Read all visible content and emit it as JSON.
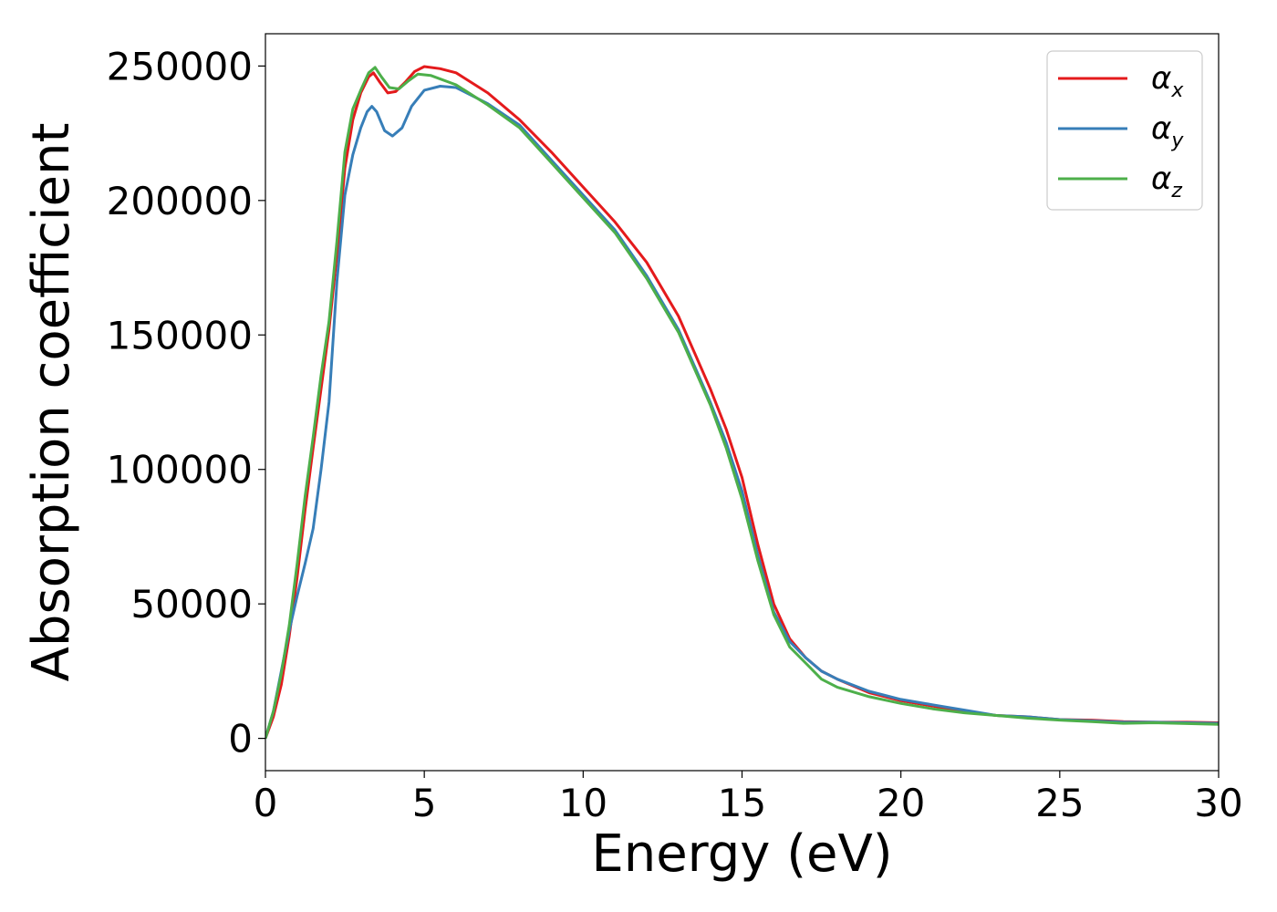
{
  "chart_data": {
    "type": "line",
    "title": "",
    "xlabel": "Energy (eV)",
    "ylabel": "Absorption coefficient",
    "xlim": [
      0,
      30
    ],
    "ylim": [
      -12000,
      262000
    ],
    "x_ticks": [
      0,
      5,
      10,
      15,
      20,
      25,
      30
    ],
    "x_tick_labels": [
      "0",
      "5",
      "10",
      "15",
      "20",
      "25",
      "30"
    ],
    "y_ticks": [
      0,
      50000,
      100000,
      150000,
      200000,
      250000
    ],
    "y_tick_labels": [
      "0",
      "50000",
      "100000",
      "150000",
      "200000",
      "250000"
    ],
    "grid": false,
    "legend_position": "top-right",
    "series": [
      {
        "name": "α_x",
        "legend_main": "α",
        "legend_sub": "x",
        "color": "#e41a1c",
        "points": [
          [
            0,
            0
          ],
          [
            0.25,
            8000
          ],
          [
            0.5,
            20000
          ],
          [
            0.75,
            38000
          ],
          [
            1,
            60000
          ],
          [
            1.25,
            85000
          ],
          [
            1.5,
            108000
          ],
          [
            1.75,
            130000
          ],
          [
            2,
            152000
          ],
          [
            2.25,
            180000
          ],
          [
            2.5,
            212000
          ],
          [
            2.75,
            230000
          ],
          [
            3,
            240000
          ],
          [
            3.25,
            246000
          ],
          [
            3.4,
            247500
          ],
          [
            3.6,
            244000
          ],
          [
            3.85,
            240000
          ],
          [
            4.1,
            240500
          ],
          [
            4.4,
            244000
          ],
          [
            4.7,
            248000
          ],
          [
            5,
            249800
          ],
          [
            5.5,
            249000
          ],
          [
            6,
            247500
          ],
          [
            7,
            240000
          ],
          [
            8,
            230000
          ],
          [
            9,
            218000
          ],
          [
            10,
            205000
          ],
          [
            11,
            192000
          ],
          [
            12,
            177000
          ],
          [
            13,
            157000
          ],
          [
            14,
            130000
          ],
          [
            14.5,
            115000
          ],
          [
            15,
            97000
          ],
          [
            15.5,
            72000
          ],
          [
            16,
            50000
          ],
          [
            16.5,
            37000
          ],
          [
            17,
            30000
          ],
          [
            17.5,
            25000
          ],
          [
            18,
            22000
          ],
          [
            19,
            17000
          ],
          [
            20,
            14000
          ],
          [
            21,
            12000
          ],
          [
            22,
            10000
          ],
          [
            23,
            8500
          ],
          [
            24,
            8000
          ],
          [
            25,
            7000
          ],
          [
            26,
            6800
          ],
          [
            27,
            6200
          ],
          [
            28,
            6000
          ],
          [
            29,
            6000
          ],
          [
            30,
            5800
          ]
        ]
      },
      {
        "name": "α_y",
        "legend_main": "α",
        "legend_sub": "y",
        "color": "#377eb8",
        "points": [
          [
            0,
            0
          ],
          [
            0.25,
            10000
          ],
          [
            0.5,
            25000
          ],
          [
            0.75,
            40000
          ],
          [
            1,
            53000
          ],
          [
            1.25,
            65000
          ],
          [
            1.5,
            78000
          ],
          [
            1.75,
            100000
          ],
          [
            2,
            125000
          ],
          [
            2.25,
            170000
          ],
          [
            2.5,
            202000
          ],
          [
            2.75,
            217000
          ],
          [
            3,
            227000
          ],
          [
            3.2,
            233000
          ],
          [
            3.35,
            235000
          ],
          [
            3.5,
            233000
          ],
          [
            3.75,
            226000
          ],
          [
            4,
            224000
          ],
          [
            4.3,
            227000
          ],
          [
            4.6,
            235000
          ],
          [
            5,
            241000
          ],
          [
            5.5,
            242500
          ],
          [
            6,
            242000
          ],
          [
            7,
            236000
          ],
          [
            8,
            228000
          ],
          [
            9,
            215000
          ],
          [
            10,
            202000
          ],
          [
            11,
            189000
          ],
          [
            12,
            172000
          ],
          [
            13,
            152000
          ],
          [
            14,
            125000
          ],
          [
            14.5,
            110000
          ],
          [
            15,
            92000
          ],
          [
            15.5,
            68000
          ],
          [
            16,
            47000
          ],
          [
            16.5,
            36000
          ],
          [
            17,
            30000
          ],
          [
            17.5,
            25000
          ],
          [
            18,
            22000
          ],
          [
            19,
            17500
          ],
          [
            20,
            14500
          ],
          [
            21,
            12500
          ],
          [
            22,
            10500
          ],
          [
            23,
            8500
          ],
          [
            24,
            8000
          ],
          [
            25,
            7000
          ],
          [
            26,
            6500
          ],
          [
            27,
            6000
          ],
          [
            28,
            6000
          ],
          [
            29,
            5800
          ],
          [
            30,
            5600
          ]
        ]
      },
      {
        "name": "α_z",
        "legend_main": "α",
        "legend_sub": "z",
        "color": "#4daf4a",
        "points": [
          [
            0,
            0
          ],
          [
            0.25,
            10000
          ],
          [
            0.5,
            24000
          ],
          [
            0.75,
            42000
          ],
          [
            1,
            65000
          ],
          [
            1.25,
            90000
          ],
          [
            1.5,
            112000
          ],
          [
            1.75,
            135000
          ],
          [
            2,
            155000
          ],
          [
            2.25,
            185000
          ],
          [
            2.5,
            218000
          ],
          [
            2.75,
            234000
          ],
          [
            3,
            241000
          ],
          [
            3.25,
            247500
          ],
          [
            3.45,
            249500
          ],
          [
            3.65,
            246000
          ],
          [
            3.9,
            242000
          ],
          [
            4.2,
            241500
          ],
          [
            4.5,
            244500
          ],
          [
            4.8,
            247000
          ],
          [
            5.2,
            246500
          ],
          [
            6,
            243000
          ],
          [
            7,
            235500
          ],
          [
            8,
            227000
          ],
          [
            9,
            214000
          ],
          [
            10,
            201000
          ],
          [
            11,
            188000
          ],
          [
            12,
            171000
          ],
          [
            13,
            151000
          ],
          [
            14,
            124000
          ],
          [
            14.5,
            108000
          ],
          [
            15,
            89000
          ],
          [
            15.5,
            66000
          ],
          [
            16,
            46000
          ],
          [
            16.5,
            34000
          ],
          [
            17,
            28000
          ],
          [
            17.5,
            22000
          ],
          [
            18,
            19000
          ],
          [
            19,
            15500
          ],
          [
            20,
            13000
          ],
          [
            21,
            11000
          ],
          [
            22,
            9500
          ],
          [
            23,
            8500
          ],
          [
            24,
            7500
          ],
          [
            25,
            6800
          ],
          [
            26,
            6200
          ],
          [
            27,
            5600
          ],
          [
            28,
            5800
          ],
          [
            29,
            5500
          ],
          [
            30,
            5200
          ]
        ]
      }
    ]
  }
}
